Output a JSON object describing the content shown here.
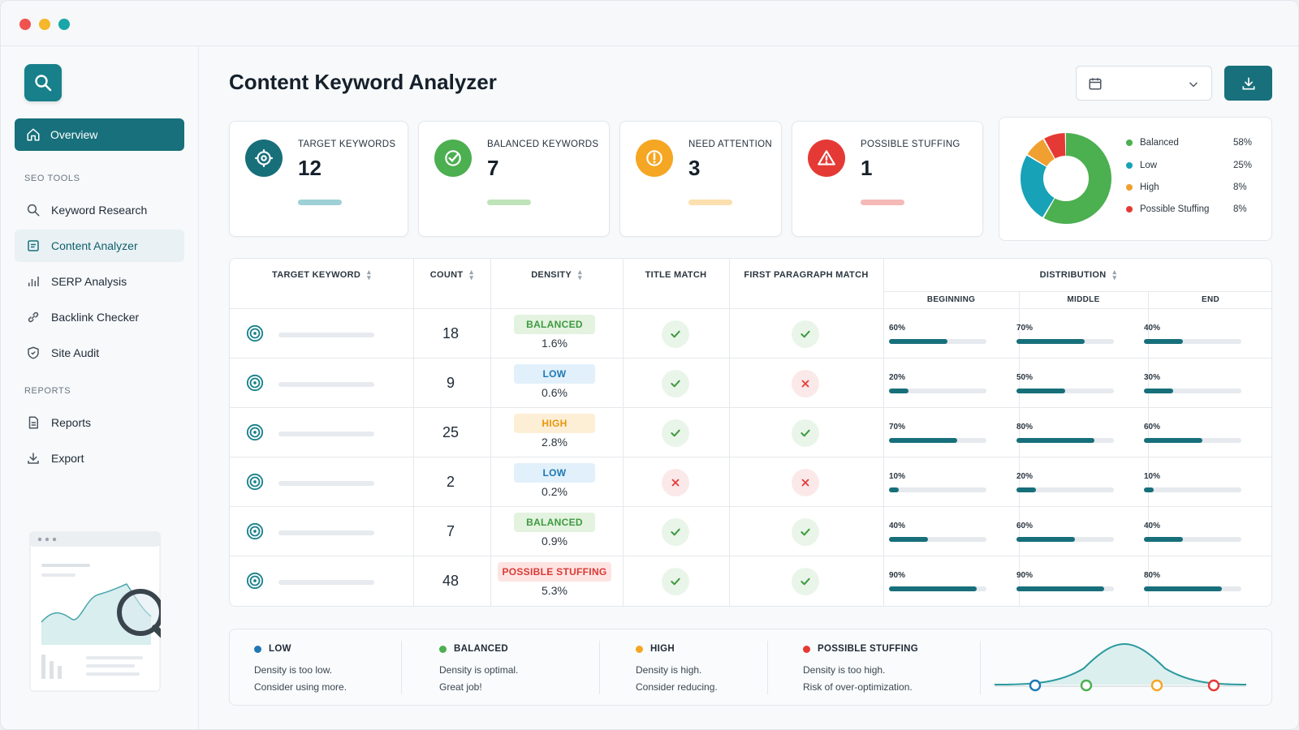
{
  "window": {
    "controls": [
      "close",
      "minimize",
      "maximize"
    ]
  },
  "sidebar": {
    "nav_active": {
      "label": "Overview",
      "icon": "home-icon"
    },
    "sections": [
      {
        "title": "SEO TOOLS",
        "items": [
          {
            "label": "Keyword Research",
            "icon": "search-icon"
          },
          {
            "label": "Content Analyzer",
            "icon": "document-icon",
            "selected": true
          },
          {
            "label": "SERP Analysis",
            "icon": "bar-chart-icon"
          },
          {
            "label": "Backlink Checker",
            "icon": "link-icon"
          },
          {
            "label": "Site Audit",
            "icon": "shield-icon"
          }
        ]
      },
      {
        "title": "REPORTS",
        "items": [
          {
            "label": "Reports",
            "icon": "report-icon"
          },
          {
            "label": "Export",
            "icon": "download-icon"
          }
        ]
      }
    ]
  },
  "header": {
    "title": "Content Keyword Analyzer",
    "date_value": ""
  },
  "cards": [
    {
      "label": "TARGET KEYWORDS",
      "value": "12",
      "color": "#176f7a",
      "bar_color": "#9fd0d6",
      "icon": "target-icon"
    },
    {
      "label": "BALANCED KEYWORDS",
      "value": "7",
      "color": "#4caf50",
      "bar_color": "#bfe3b9",
      "icon": "check-circle-icon"
    },
    {
      "label": "NEED ATTENTION",
      "value": "3",
      "color": "#f5a623",
      "bar_color": "#fbdfae",
      "icon": "alert-circle-icon"
    },
    {
      "label": "POSSIBLE STUFFING",
      "value": "1",
      "color": "#e53935",
      "bar_color": "#f5b9b6",
      "icon": "warning-triangle-icon"
    }
  ],
  "distribution_chart": {
    "items": [
      {
        "name": "Balanced",
        "pct": "58%",
        "value": 58,
        "color": "#4caf50"
      },
      {
        "name": "Low",
        "pct": "25%",
        "value": 25,
        "color": "#17a2b8"
      },
      {
        "name": "High",
        "pct": "8%",
        "value": 8,
        "color": "#f0a030"
      },
      {
        "name": "Possible Stuffing",
        "pct": "8%",
        "value": 8,
        "color": "#e53935"
      }
    ]
  },
  "table": {
    "headers": {
      "keyword": "TARGET KEYWORD",
      "count": "COUNT",
      "density": "DENSITY",
      "title_match": "TITLE MATCH",
      "first_para": "FIRST PARAGRAPH MATCH",
      "distribution": "DISTRIBUTION",
      "beginning": "BEGINNING",
      "middle": "MIDDLE",
      "end": "END"
    },
    "rows": [
      {
        "count": "18",
        "badge": "BALANCED",
        "badge_type": "balanced",
        "density": "1.6%",
        "title": true,
        "para": true,
        "begin": "60%",
        "begin_v": 0.6,
        "middle": "70%",
        "middle_v": 0.7,
        "end": "40%",
        "end_v": 0.4
      },
      {
        "count": "9",
        "badge": "LOW",
        "badge_type": "low",
        "density": "0.6%",
        "title": true,
        "para": false,
        "begin": "20%",
        "begin_v": 0.2,
        "middle": "50%",
        "middle_v": 0.5,
        "end": "30%",
        "end_v": 0.3
      },
      {
        "count": "25",
        "badge": "HIGH",
        "badge_type": "high",
        "density": "2.8%",
        "title": true,
        "para": true,
        "begin": "70%",
        "begin_v": 0.7,
        "middle": "80%",
        "middle_v": 0.8,
        "end": "60%",
        "end_v": 0.6
      },
      {
        "count": "2",
        "badge": "LOW",
        "badge_type": "low",
        "density": "0.2%",
        "title": false,
        "para": false,
        "begin": "10%",
        "begin_v": 0.1,
        "middle": "20%",
        "middle_v": 0.2,
        "end": "10%",
        "end_v": 0.1
      },
      {
        "count": "7",
        "badge": "BALANCED",
        "badge_type": "balanced",
        "density": "0.9%",
        "title": true,
        "para": true,
        "begin": "40%",
        "begin_v": 0.4,
        "middle": "60%",
        "middle_v": 0.6,
        "end": "40%",
        "end_v": 0.4
      },
      {
        "count": "48",
        "badge": "POSSIBLE STUFFING",
        "badge_type": "stuffing",
        "density": "5.3%",
        "title": true,
        "para": true,
        "begin": "90%",
        "begin_v": 0.9,
        "middle": "90%",
        "middle_v": 0.9,
        "end": "80%",
        "end_v": 0.8
      }
    ]
  },
  "badge_styles": {
    "balanced": {
      "bg": "#e3f3e0",
      "fg": "#3d9a3f"
    },
    "low": {
      "bg": "#e1f0fa",
      "fg": "#1f78b4"
    },
    "high": {
      "bg": "#fdefd6",
      "fg": "#e8960c"
    },
    "stuffing": {
      "bg": "#fde4e3",
      "fg": "#d93a35"
    }
  },
  "legend_footer": [
    {
      "title": "LOW",
      "color": "#1f78b4",
      "line1": "Density is too low.",
      "line2": "Consider using more."
    },
    {
      "title": "BALANCED",
      "color": "#4caf50",
      "line1": "Density is optimal.",
      "line2": "Great job!"
    },
    {
      "title": "HIGH",
      "color": "#f5a623",
      "line1": "Density is high.",
      "line2": "Consider reducing."
    },
    {
      "title": "POSSIBLE STUFFING",
      "color": "#e53935",
      "line1": "Density is too high.",
      "line2": "Risk of over-optimization."
    }
  ]
}
